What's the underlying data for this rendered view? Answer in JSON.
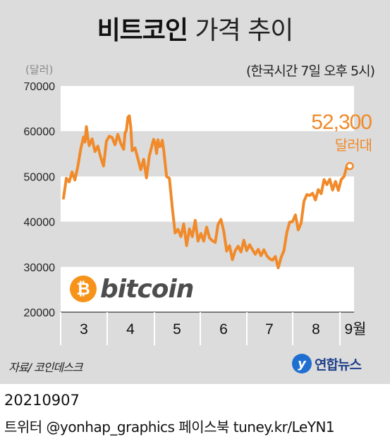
{
  "header": {
    "title_bold": "비트코인",
    "title_light": "가격 추이"
  },
  "unit_label": "(달러)",
  "note": "(한국시간 7일 오후 5시)",
  "callout": {
    "value": "52,300",
    "unit": "달러대"
  },
  "bitcoin_logo": {
    "text": "bitcoin",
    "symbol": "₿"
  },
  "source": "자료/ 코인데스크",
  "agency_logo": "연합뉴스",
  "footer": {
    "date": "20210907",
    "credit": "트위터 @yonhap_graphics  페이스북 tuney.kr/LeYN1"
  },
  "colors": {
    "line": "#f08a2a",
    "band_light": "#ffffff",
    "band_dark": "#dcdcdc",
    "callout": "#f08a2a",
    "bitcoin_orange": "#f7931a"
  },
  "chart_data": {
    "type": "line",
    "title": "비트코인 가격 추이",
    "ylabel": "(달러)",
    "ylim": [
      20000,
      70000
    ],
    "yticks": [
      "70000",
      "60000",
      "50000",
      "40000",
      "30000",
      "20000"
    ],
    "months": [
      "3",
      "4",
      "5",
      "6",
      "7",
      "8",
      "9월"
    ],
    "x_unit": "day index from 1 March 2021",
    "series": [
      {
        "name": "비트코인",
        "points": [
          [
            0,
            45200
          ],
          [
            2,
            49600
          ],
          [
            4,
            48800
          ],
          [
            6,
            51000
          ],
          [
            8,
            49200
          ],
          [
            10,
            52200
          ],
          [
            12,
            56000
          ],
          [
            14,
            58700
          ],
          [
            15,
            57600
          ],
          [
            16,
            61000
          ],
          [
            17,
            58600
          ],
          [
            18,
            56800
          ],
          [
            20,
            58300
          ],
          [
            22,
            55500
          ],
          [
            24,
            56700
          ],
          [
            26,
            54200
          ],
          [
            28,
            52300
          ],
          [
            30,
            57800
          ],
          [
            32,
            58900
          ],
          [
            34,
            58600
          ],
          [
            36,
            57000
          ],
          [
            38,
            59300
          ],
          [
            40,
            57300
          ],
          [
            42,
            56000
          ],
          [
            43,
            59600
          ],
          [
            44,
            60200
          ],
          [
            45,
            63100
          ],
          [
            46,
            63400
          ],
          [
            47,
            60900
          ],
          [
            48,
            55700
          ],
          [
            50,
            56300
          ],
          [
            52,
            53900
          ],
          [
            54,
            51500
          ],
          [
            56,
            53800
          ],
          [
            58,
            49700
          ],
          [
            60,
            54600
          ],
          [
            61,
            55800
          ],
          [
            62,
            57100
          ],
          [
            63,
            58200
          ],
          [
            64,
            57400
          ],
          [
            65,
            55100
          ],
          [
            66,
            58100
          ],
          [
            67,
            56600
          ],
          [
            68,
            56700
          ],
          [
            69,
            58000
          ],
          [
            70,
            55900
          ],
          [
            72,
            50000
          ],
          [
            74,
            49600
          ],
          [
            76,
            43100
          ],
          [
            78,
            37500
          ],
          [
            80,
            38300
          ],
          [
            82,
            36700
          ],
          [
            84,
            39500
          ],
          [
            86,
            34700
          ],
          [
            88,
            38400
          ],
          [
            90,
            36700
          ],
          [
            92,
            40300
          ],
          [
            94,
            35700
          ],
          [
            96,
            37400
          ],
          [
            98,
            35700
          ],
          [
            100,
            38800
          ],
          [
            102,
            36400
          ],
          [
            104,
            35800
          ],
          [
            106,
            35400
          ],
          [
            108,
            39400
          ],
          [
            110,
            40500
          ],
          [
            112,
            37800
          ],
          [
            114,
            33500
          ],
          [
            116,
            34700
          ],
          [
            118,
            31600
          ],
          [
            120,
            33600
          ],
          [
            122,
            34600
          ],
          [
            124,
            33300
          ],
          [
            126,
            35900
          ],
          [
            128,
            33600
          ],
          [
            130,
            34900
          ],
          [
            132,
            33800
          ],
          [
            134,
            32800
          ],
          [
            136,
            33900
          ],
          [
            138,
            32500
          ],
          [
            140,
            33800
          ],
          [
            142,
            32500
          ],
          [
            144,
            31800
          ],
          [
            146,
            31500
          ],
          [
            148,
            32300
          ],
          [
            150,
            29800
          ],
          [
            152,
            32100
          ],
          [
            154,
            33600
          ],
          [
            156,
            37600
          ],
          [
            158,
            39900
          ],
          [
            160,
            40000
          ],
          [
            162,
            41500
          ],
          [
            164,
            38200
          ],
          [
            166,
            39700
          ],
          [
            168,
            44500
          ],
          [
            170,
            46000
          ],
          [
            172,
            45800
          ],
          [
            174,
            46300
          ],
          [
            176,
            44800
          ],
          [
            178,
            47100
          ],
          [
            180,
            46200
          ],
          [
            182,
            49300
          ],
          [
            184,
            48200
          ],
          [
            186,
            49400
          ],
          [
            188,
            47000
          ],
          [
            190,
            48900
          ],
          [
            192,
            46900
          ],
          [
            194,
            49300
          ],
          [
            196,
            50000
          ],
          [
            198,
            52300
          ],
          [
            200,
            52300
          ]
        ]
      }
    ],
    "annotation": {
      "x": 200,
      "y": 52300,
      "label": "52,300 달러대"
    }
  }
}
